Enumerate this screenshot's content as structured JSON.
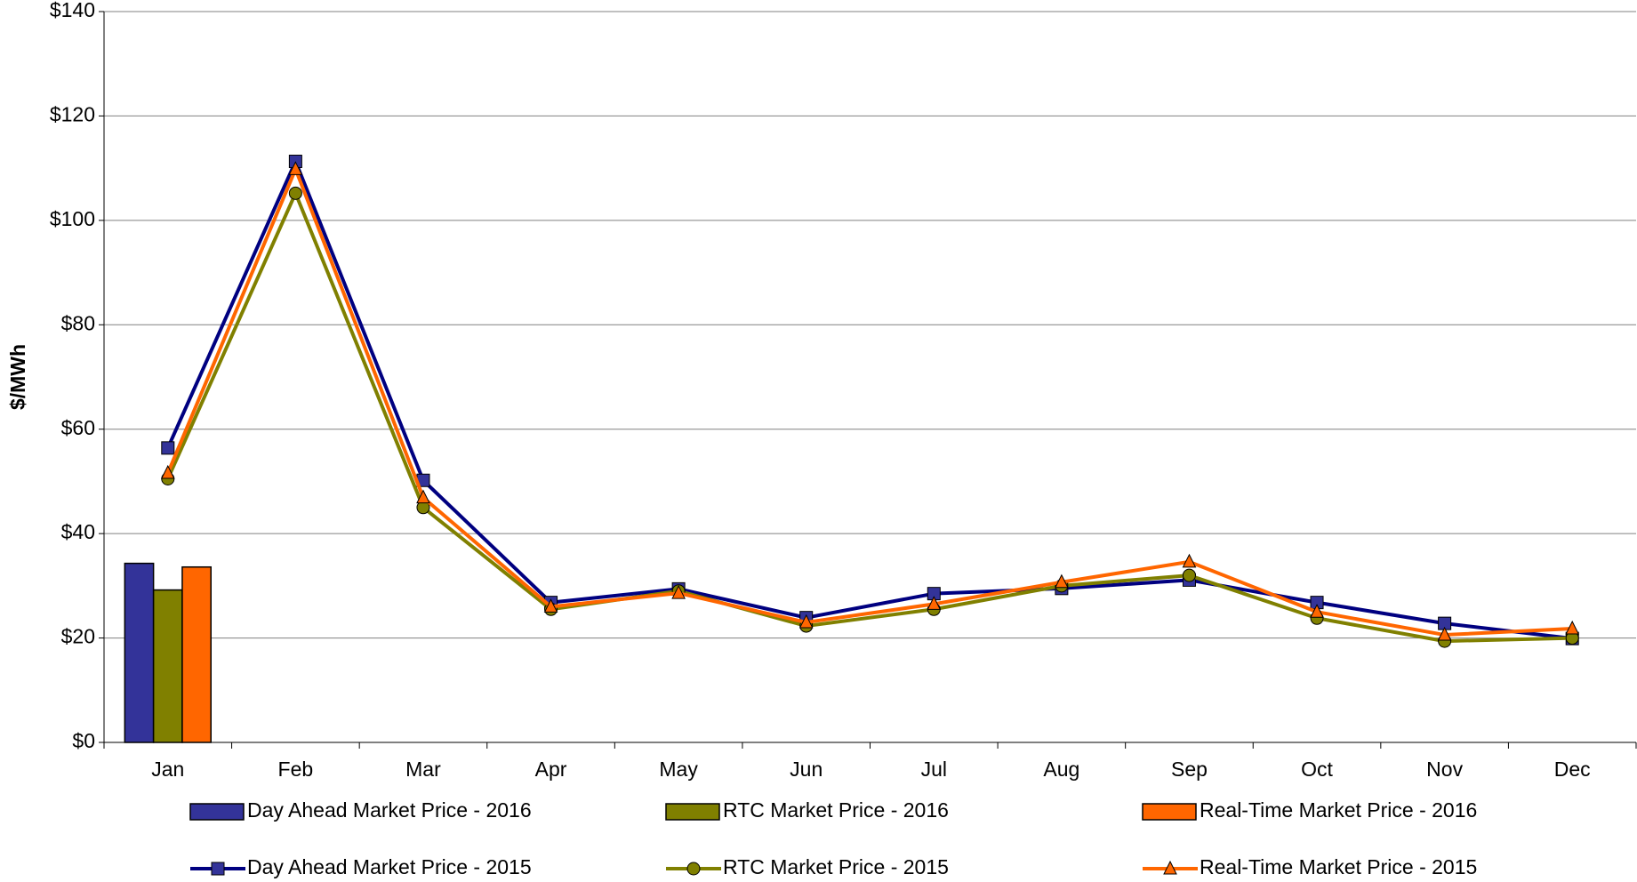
{
  "chart_data": {
    "type": "combo",
    "y_label": "$/MWh",
    "categories": [
      "Jan",
      "Feb",
      "Mar",
      "Apr",
      "May",
      "Jun",
      "Jul",
      "Aug",
      "Sep",
      "Oct",
      "Nov",
      "Dec"
    ],
    "ylim": [
      0,
      140
    ],
    "yticks": [
      {
        "value": 0,
        "label": "$0"
      },
      {
        "value": 20,
        "label": "$20"
      },
      {
        "value": 40,
        "label": "$40"
      },
      {
        "value": 60,
        "label": "$60"
      },
      {
        "value": 80,
        "label": "$80"
      },
      {
        "value": 100,
        "label": "$100"
      },
      {
        "value": 120,
        "label": "$120"
      },
      {
        "value": 140,
        "label": "$140"
      }
    ],
    "grid": true,
    "series": [
      {
        "name": "Day Ahead Market Price - 2016",
        "type": "bar",
        "color": "#333399",
        "values": [
          34.3,
          null,
          null,
          null,
          null,
          null,
          null,
          null,
          null,
          null,
          null,
          null
        ]
      },
      {
        "name": "RTC Market Price - 2016",
        "type": "bar",
        "color": "#808000",
        "values": [
          29.2,
          null,
          null,
          null,
          null,
          null,
          null,
          null,
          null,
          null,
          null,
          null
        ]
      },
      {
        "name": "Real-Time Market Price - 2016",
        "type": "bar",
        "color": "#ff6600",
        "values": [
          33.6,
          null,
          null,
          null,
          null,
          null,
          null,
          null,
          null,
          null,
          null,
          null
        ]
      },
      {
        "name": "Day Ahead Market Price - 2015",
        "type": "line",
        "marker": "square",
        "color": "#000080",
        "marker_color": "#333399",
        "values": [
          56.4,
          111.3,
          50.2,
          26.8,
          29.4,
          23.9,
          28.5,
          29.5,
          31.1,
          26.8,
          22.8,
          19.9
        ]
      },
      {
        "name": "RTC Market Price - 2015",
        "type": "line",
        "marker": "circle",
        "color": "#808000",
        "marker_color": "#808000",
        "values": [
          50.5,
          105.2,
          45.0,
          25.5,
          29.0,
          22.3,
          25.5,
          30.0,
          32.0,
          23.8,
          19.4,
          20.0
        ]
      },
      {
        "name": "Real-Time Market Price - 2015",
        "type": "line",
        "marker": "triangle",
        "color": "#ff6600",
        "marker_color": "#ff6600",
        "values": [
          51.6,
          109.8,
          46.9,
          26.0,
          28.6,
          23.0,
          26.5,
          30.7,
          34.6,
          25.0,
          20.6,
          21.8
        ]
      }
    ]
  }
}
